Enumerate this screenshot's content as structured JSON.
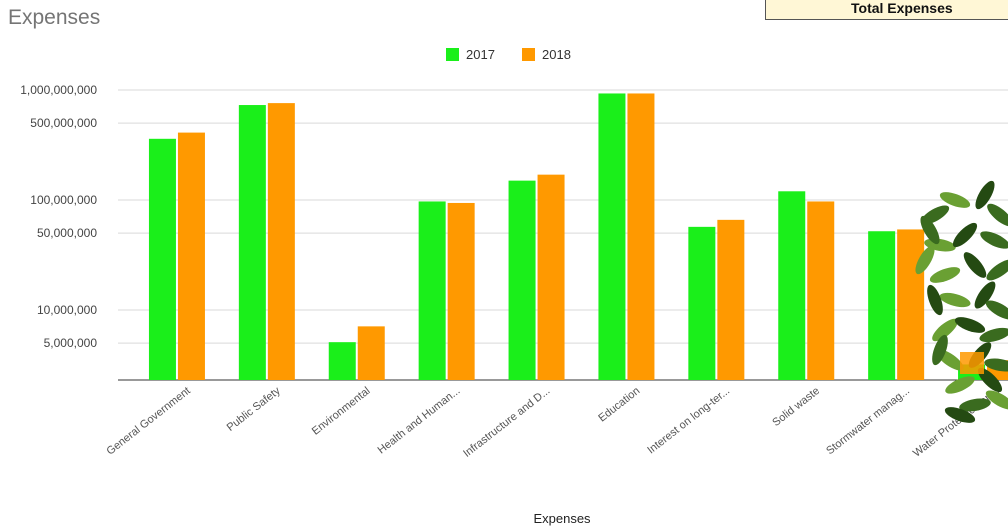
{
  "header": {
    "total_label": "Total Expenses"
  },
  "chart_data": {
    "type": "bar",
    "title": "Expenses",
    "xlabel": "Expenses",
    "ylabel": "",
    "yscale": "log",
    "ylim": [
      1700000,
      1000000000
    ],
    "yticks": [
      {
        "value": 5000000,
        "label": "5,000,000"
      },
      {
        "value": 10000000,
        "label": "10,000,000"
      },
      {
        "value": 50000000,
        "label": "50,000,000"
      },
      {
        "value": 100000000,
        "label": "100,000,000"
      },
      {
        "value": 500000000,
        "label": "500,000,000"
      },
      {
        "value": 1000000000,
        "label": "1,000,000,000"
      }
    ],
    "legend_position": "top",
    "grid": true,
    "categories": [
      "General Government",
      "Public Safety",
      "Environmental",
      "Health and Human...",
      "Infrastructure and D...",
      "Education",
      "Interest on long-ter...",
      "Solid waste",
      "Stormwater manag...",
      "Water Protection an..."
    ],
    "series": [
      {
        "name": "2017",
        "color": "#1aef1a",
        "values": [
          360000000,
          730000000,
          5100000,
          97000000,
          150000000,
          930000000,
          57000000,
          120000000,
          52000000,
          3200000
        ]
      },
      {
        "name": "2018",
        "color": "#ff9900",
        "values": [
          410000000,
          760000000,
          7100000,
          94000000,
          170000000,
          930000000,
          66000000,
          97000000,
          54000000,
          3500000
        ]
      }
    ]
  },
  "decoration": {
    "icon": "leaf-foliage-icon",
    "leaf_colors": [
      "#3a6b1f",
      "#6aa033",
      "#244a12"
    ]
  }
}
